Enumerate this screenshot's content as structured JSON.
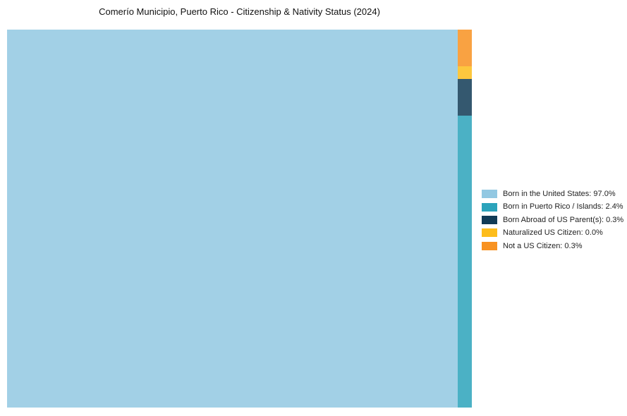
{
  "chart_data": {
    "type": "treemap",
    "title": "Comerío Municipio, Puerto Rico - Citizenship & Nativity Status (2024)",
    "unit": "%",
    "legend_position": "right",
    "background_color": "#ffffff",
    "items": [
      {
        "label": "Born in the United States",
        "value": 97.0,
        "color": "#92c8e2",
        "legend_label": "Born in the United States: 97.0%"
      },
      {
        "label": "Born in Puerto Rico / Islands",
        "value": 2.4,
        "color": "#2ba3bb",
        "legend_label": "Born in Puerto Rico / Islands: 2.4%"
      },
      {
        "label": "Born Abroad of US Parent(s)",
        "value": 0.3,
        "color": "#113b56",
        "legend_label": "Born Abroad of US Parent(s): 0.3%"
      },
      {
        "label": "Naturalized US Citizen",
        "value": 0.0,
        "color": "#fdbd1c",
        "legend_label": "Naturalized US Citizen: 0.0%"
      },
      {
        "label": "Not a US Citizen",
        "value": 0.3,
        "color": "#f89221",
        "legend_label": "Not a US Citizen: 0.3%"
      }
    ]
  }
}
